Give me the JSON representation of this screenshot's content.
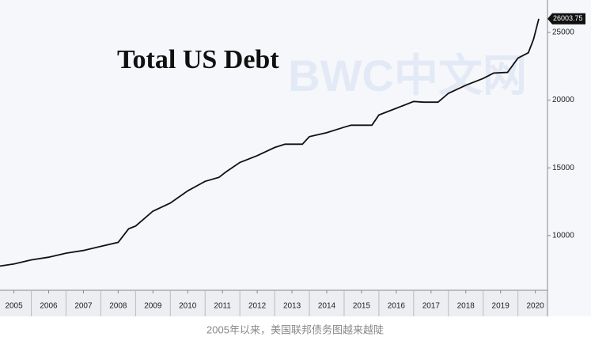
{
  "chart_data": {
    "type": "line",
    "title": "Total US Debt",
    "watermark": "BWC中文网",
    "caption": "2005年以来，美国联邦债务图越来越陡",
    "color": "#111111",
    "x": [
      2005.1,
      2005.5,
      2006.0,
      2006.5,
      2007.0,
      2007.5,
      2008.0,
      2008.5,
      2008.8,
      2009.0,
      2009.5,
      2010.0,
      2010.5,
      2011.0,
      2011.4,
      2011.6,
      2012.0,
      2012.5,
      2013.0,
      2013.3,
      2013.8,
      2014.0,
      2014.5,
      2015.0,
      2015.2,
      2015.8,
      2016.0,
      2016.5,
      2017.0,
      2017.3,
      2017.7,
      2018.0,
      2018.5,
      2019.0,
      2019.3,
      2019.7,
      2020.0,
      2020.3,
      2020.45,
      2020.6
    ],
    "values": [
      7750,
      7900,
      8200,
      8400,
      8700,
      8900,
      9200,
      9500,
      10500,
      10700,
      11800,
      12400,
      13300,
      14000,
      14300,
      14700,
      15400,
      15900,
      16500,
      16750,
      16750,
      17300,
      17600,
      18000,
      18150,
      18150,
      18900,
      19400,
      19900,
      19850,
      19850,
      20500,
      21100,
      21600,
      22000,
      22050,
      23100,
      23500,
      24500,
      26003.75
    ],
    "xlim": [
      2005.1,
      2020.85
    ],
    "xticks": [
      {
        "value": 2005.5,
        "label": "2005"
      },
      {
        "value": 2006.5,
        "label": "2006"
      },
      {
        "value": 2007.5,
        "label": "2007"
      },
      {
        "value": 2008.5,
        "label": "2008"
      },
      {
        "value": 2009.5,
        "label": "2009"
      },
      {
        "value": 2010.5,
        "label": "2010"
      },
      {
        "value": 2011.5,
        "label": "2011"
      },
      {
        "value": 2012.5,
        "label": "2012"
      },
      {
        "value": 2013.5,
        "label": "2013"
      },
      {
        "value": 2014.5,
        "label": "2014"
      },
      {
        "value": 2015.5,
        "label": "2015"
      },
      {
        "value": 2016.5,
        "label": "2016"
      },
      {
        "value": 2017.5,
        "label": "2017"
      },
      {
        "value": 2018.5,
        "label": "2018"
      },
      {
        "value": 2019.5,
        "label": "2019"
      },
      {
        "value": 2020.5,
        "label": "2020"
      }
    ],
    "ylim": [
      5960,
      26810
    ],
    "yticks": [
      10000,
      15000,
      20000,
      25000
    ]
  }
}
